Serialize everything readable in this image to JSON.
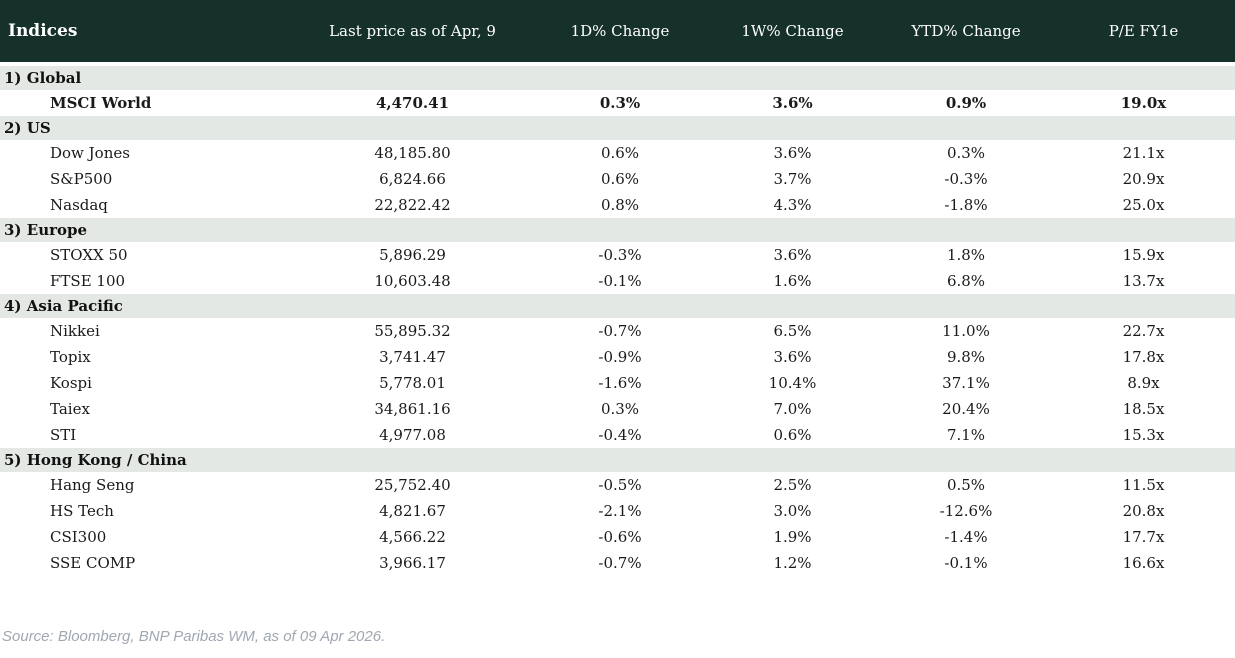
{
  "colors": {
    "header_bg": "#16312a",
    "section_bg": "#e3e8e4",
    "positive": "#008c00",
    "negative": "#c00a1b",
    "muted": "#9fa8b2"
  },
  "table": {
    "title": "Indices",
    "columns": [
      "Last price as of Apr, 9",
      "1D% Change",
      "1W% Change",
      "YTD% Change",
      "P/E FY1e"
    ],
    "sections": [
      {
        "label": "1) Global",
        "rows": [
          {
            "name": "MSCI World",
            "last_price": "4,470.41",
            "chg_1d": "0.3%",
            "chg_1w": "3.6%",
            "chg_ytd": "0.9%",
            "pe": "19.0x",
            "emphasis": true
          }
        ]
      },
      {
        "label": "2) US",
        "rows": [
          {
            "name": "Dow Jones",
            "last_price": "48,185.80",
            "chg_1d": "0.6%",
            "chg_1w": "3.6%",
            "chg_ytd": "0.3%",
            "pe": "21.1x",
            "emphasis": false
          },
          {
            "name": "S&P500",
            "last_price": "6,824.66",
            "chg_1d": "0.6%",
            "chg_1w": "3.7%",
            "chg_ytd": "-0.3%",
            "pe": "20.9x",
            "emphasis": false
          },
          {
            "name": "Nasdaq",
            "last_price": "22,822.42",
            "chg_1d": "0.8%",
            "chg_1w": "4.3%",
            "chg_ytd": "-1.8%",
            "pe": "25.0x",
            "emphasis": false
          }
        ]
      },
      {
        "label": "3) Europe",
        "rows": [
          {
            "name": "STOXX 50",
            "last_price": "5,896.29",
            "chg_1d": "-0.3%",
            "chg_1w": "3.6%",
            "chg_ytd": "1.8%",
            "pe": "15.9x",
            "emphasis": false
          },
          {
            "name": "FTSE 100",
            "last_price": "10,603.48",
            "chg_1d": "-0.1%",
            "chg_1w": "1.6%",
            "chg_ytd": "6.8%",
            "pe": "13.7x",
            "emphasis": false
          }
        ]
      },
      {
        "label": "4) Asia Pacific",
        "rows": [
          {
            "name": "Nikkei",
            "last_price": "55,895.32",
            "chg_1d": "-0.7%",
            "chg_1w": "6.5%",
            "chg_ytd": "11.0%",
            "pe": "22.7x",
            "emphasis": false
          },
          {
            "name": "Topix",
            "last_price": "3,741.47",
            "chg_1d": "-0.9%",
            "chg_1w": "3.6%",
            "chg_ytd": "9.8%",
            "pe": "17.8x",
            "emphasis": false
          },
          {
            "name": "Kospi",
            "last_price": "5,778.01",
            "chg_1d": "-1.6%",
            "chg_1w": "10.4%",
            "chg_ytd": "37.1%",
            "pe": "8.9x",
            "emphasis": false
          },
          {
            "name": "Taiex",
            "last_price": "34,861.16",
            "chg_1d": "0.3%",
            "chg_1w": "7.0%",
            "chg_ytd": "20.4%",
            "pe": "18.5x",
            "emphasis": false
          },
          {
            "name": "STI",
            "last_price": "4,977.08",
            "chg_1d": "-0.4%",
            "chg_1w": "0.6%",
            "chg_ytd": "7.1%",
            "pe": "15.3x",
            "emphasis": false
          }
        ]
      },
      {
        "label": "5) Hong Kong / China",
        "rows": [
          {
            "name": "Hang Seng",
            "last_price": "25,752.40",
            "chg_1d": "-0.5%",
            "chg_1w": "2.5%",
            "chg_ytd": "0.5%",
            "pe": "11.5x",
            "emphasis": false
          },
          {
            "name": "HS Tech",
            "last_price": "4,821.67",
            "chg_1d": "-2.1%",
            "chg_1w": "3.0%",
            "chg_ytd": "-12.6%",
            "pe": "20.8x",
            "emphasis": false
          },
          {
            "name": "CSI300",
            "last_price": "4,566.22",
            "chg_1d": "-0.6%",
            "chg_1w": "1.9%",
            "chg_ytd": "-1.4%",
            "pe": "17.7x",
            "emphasis": false
          },
          {
            "name": "SSE COMP",
            "last_price": "3,966.17",
            "chg_1d": "-0.7%",
            "chg_1w": "1.2%",
            "chg_ytd": "-0.1%",
            "pe": "16.6x",
            "emphasis": false
          }
        ]
      }
    ]
  },
  "footer": {
    "source": "Source: Bloomberg, BNP Paribas WM, as of 09 Apr 2026."
  }
}
